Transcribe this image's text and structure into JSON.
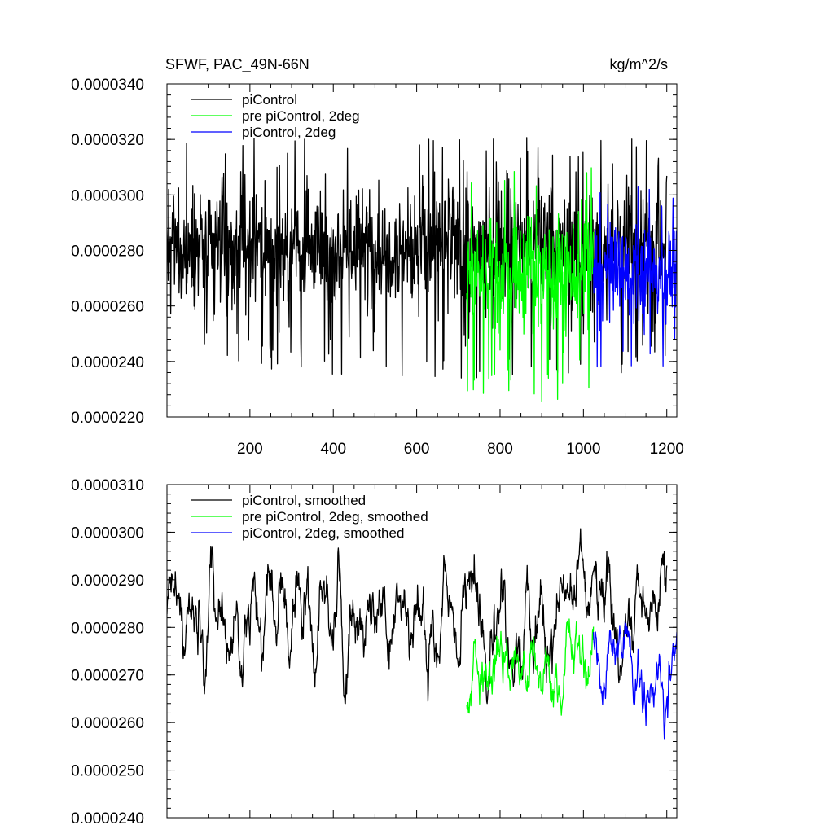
{
  "chart_data": [
    {
      "type": "line",
      "title": "SFWF, PAC_49N-66N",
      "units": "kg/m^2/s",
      "xlim": [
        1,
        1224
      ],
      "ylim": [
        2.2e-05,
        3.4e-05
      ],
      "x_ticks": [
        200,
        400,
        600,
        800,
        1000,
        1200
      ],
      "x_tick_labels": [
        "200",
        "400",
        "600",
        "800",
        "1000",
        "1200"
      ],
      "y_ticks": [
        2.2e-05,
        2.4e-05,
        2.6e-05,
        2.8e-05,
        3e-05,
        3.2e-05,
        3.4e-05
      ],
      "y_tick_labels": [
        "0.0000220",
        "0.0000240",
        "0.0000260",
        "0.0000280",
        "0.0000300",
        "0.0000320",
        "0.0000340"
      ],
      "legend_position": "top-left",
      "series": [
        {
          "name": "piControl",
          "color": "#000000",
          "x_range": [
            1,
            1200
          ],
          "mean": 2.81e-05,
          "approx_range": [
            2.26e-05,
            3.26e-05
          ]
        },
        {
          "name": "pre piControl, 2deg",
          "color": "#00ff00",
          "x_range": [
            720,
            1024
          ],
          "mean": 2.72e-05,
          "approx_range": [
            2.22e-05,
            3.2e-05
          ]
        },
        {
          "name": "piControl, 2deg",
          "color": "#0000ff",
          "x_range": [
            1024,
            1224
          ],
          "mean": 2.72e-05,
          "approx_range": [
            2.32e-05,
            3.1e-05
          ]
        }
      ]
    },
    {
      "type": "line",
      "title": "",
      "xlim": [
        1,
        1224
      ],
      "ylim": [
        2.4e-05,
        3.1e-05
      ],
      "x_ticks": [
        200,
        400,
        600,
        800,
        1000,
        1200
      ],
      "y_ticks": [
        2.4e-05,
        2.5e-05,
        2.6e-05,
        2.7e-05,
        2.8e-05,
        2.9e-05,
        3e-05,
        3.1e-05
      ],
      "y_tick_labels": [
        "0.0000240",
        "0.0000250",
        "0.0000260",
        "0.0000270",
        "0.0000280",
        "0.0000290",
        "0.0000300",
        "0.0000310"
      ],
      "legend_position": "top-left",
      "series": [
        {
          "name": "piControl, smoothed",
          "color": "#000000",
          "x_range": [
            1,
            1200
          ],
          "mean": 2.83e-05,
          "approx_range": [
            2.64e-05,
            3.05e-05
          ]
        },
        {
          "name": "pre piControl, 2deg, smoothed",
          "color": "#00ff00",
          "x_range": [
            720,
            1024
          ],
          "mean": 2.72e-05,
          "approx_range": [
            2.52e-05,
            2.85e-05
          ]
        },
        {
          "name": "piControl, 2deg, smoothed",
          "color": "#0000ff",
          "x_range": [
            1024,
            1224
          ],
          "mean": 2.72e-05,
          "approx_range": [
            2.49e-05,
            2.84e-05
          ]
        }
      ]
    }
  ]
}
